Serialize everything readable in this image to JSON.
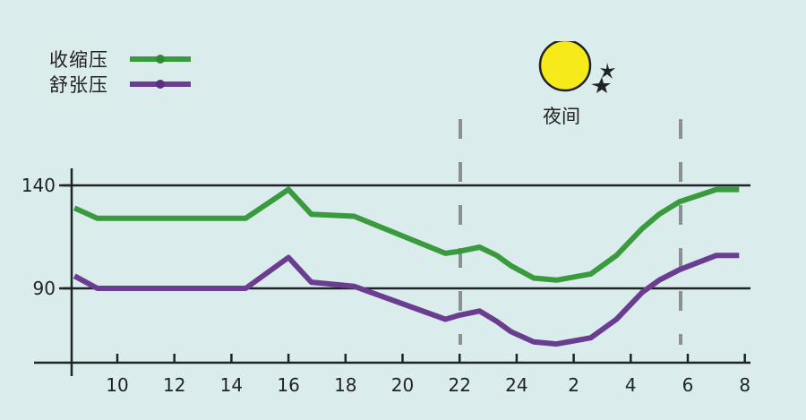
{
  "chart_data": {
    "type": "line",
    "title": "",
    "xlabel": "",
    "ylabel": "",
    "x_tick_labels": [
      "10",
      "12",
      "14",
      "16",
      "18",
      "20",
      "22",
      "24",
      "2",
      "4",
      "6",
      "8"
    ],
    "y_tick_labels": [
      "140",
      "90"
    ],
    "y_reference_lines": [
      140,
      90
    ],
    "night_region": {
      "label": "夜间",
      "start": "22",
      "end": "6"
    },
    "legend_position": "top-left",
    "grid": false,
    "x_hours": [
      8.5,
      9.3,
      14.5,
      16,
      16.8,
      18.3,
      21.5,
      22,
      22.7,
      23.3,
      23.8,
      24.6,
      25.4,
      26.6,
      27.5,
      28.4,
      29,
      29.7,
      31,
      31.8
    ],
    "series": [
      {
        "name": "收缩压",
        "color": "#3a9a3e",
        "values": [
          129,
          124,
          124,
          138,
          126,
          125,
          107,
          108,
          110,
          106,
          101,
          95,
          94,
          97,
          106,
          119,
          126,
          132,
          138,
          138
        ]
      },
      {
        "name": "舒张压",
        "color": "#6a3d90",
        "values": [
          96,
          90,
          90,
          105,
          93,
          91,
          75,
          77,
          79,
          74,
          69,
          64,
          63,
          66,
          75,
          88,
          94,
          99,
          106,
          106
        ]
      }
    ]
  },
  "legend": {
    "systolic_label": "收缩压",
    "diastolic_label": "舒张压"
  },
  "night": {
    "label": "夜间",
    "icon": "moon-with-stars-icon"
  },
  "axis": {
    "y_labels": [
      "140",
      "90"
    ],
    "x_labels": [
      "10",
      "12",
      "14",
      "16",
      "18",
      "20",
      "22",
      "24",
      "2",
      "4",
      "6",
      "8"
    ]
  },
  "colors": {
    "background": "#dbeced",
    "systolic": "#3a9a3e",
    "diastolic": "#6a3d90",
    "axis": "#1e2326",
    "dash": "#8a9092",
    "moon": "#f7ea1a"
  }
}
